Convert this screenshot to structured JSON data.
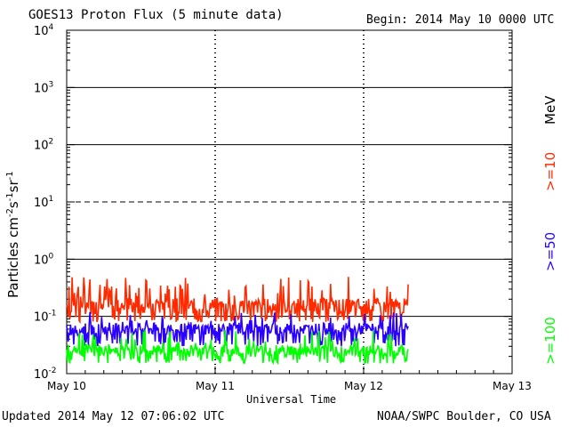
{
  "chart_data": {
    "type": "line",
    "title": "GOES13 Proton Flux (5 minute data)",
    "begin_label": "Begin: 2014 May 10 0000 UTC",
    "xlabel": "Universal Time",
    "ylabel_main": "Particles cm",
    "ylabel_parts": [
      "-2",
      "s",
      "-1",
      "sr",
      "-1"
    ],
    "x_ticks": [
      "May 10",
      "May 11",
      "May 12",
      "May 13"
    ],
    "x_range_days": [
      0,
      3
    ],
    "y_scale": "log",
    "ylim": [
      0.01,
      10000
    ],
    "y_ticks": [
      {
        "base": "10",
        "exp": "-2"
      },
      {
        "base": "10",
        "exp": "-1"
      },
      {
        "base": "10",
        "exp": "0"
      },
      {
        "base": "10",
        "exp": "1"
      },
      {
        "base": "10",
        "exp": "2"
      },
      {
        "base": "10",
        "exp": "3"
      },
      {
        "base": "10",
        "exp": "4"
      }
    ],
    "unit_label": "MeV",
    "series": [
      {
        "name": ">=10",
        "color": "#ff2a00",
        "x_range_days": [
          0,
          2.3
        ],
        "typical": 0.15,
        "min": 0.08,
        "max": 0.5
      },
      {
        "name": ">=50",
        "color": "#2a00ff",
        "x_range_days": [
          0,
          2.3
        ],
        "typical": 0.06,
        "min": 0.03,
        "max": 0.12
      },
      {
        "name": ">=100",
        "color": "#00ff00",
        "x_range_days": [
          0,
          2.3
        ],
        "typical": 0.025,
        "min": 0.015,
        "max": 0.06
      }
    ]
  },
  "footer": {
    "updated": "Updated 2014 May 12 07:06:02 UTC",
    "credit": "NOAA/SWPC Boulder, CO USA"
  }
}
